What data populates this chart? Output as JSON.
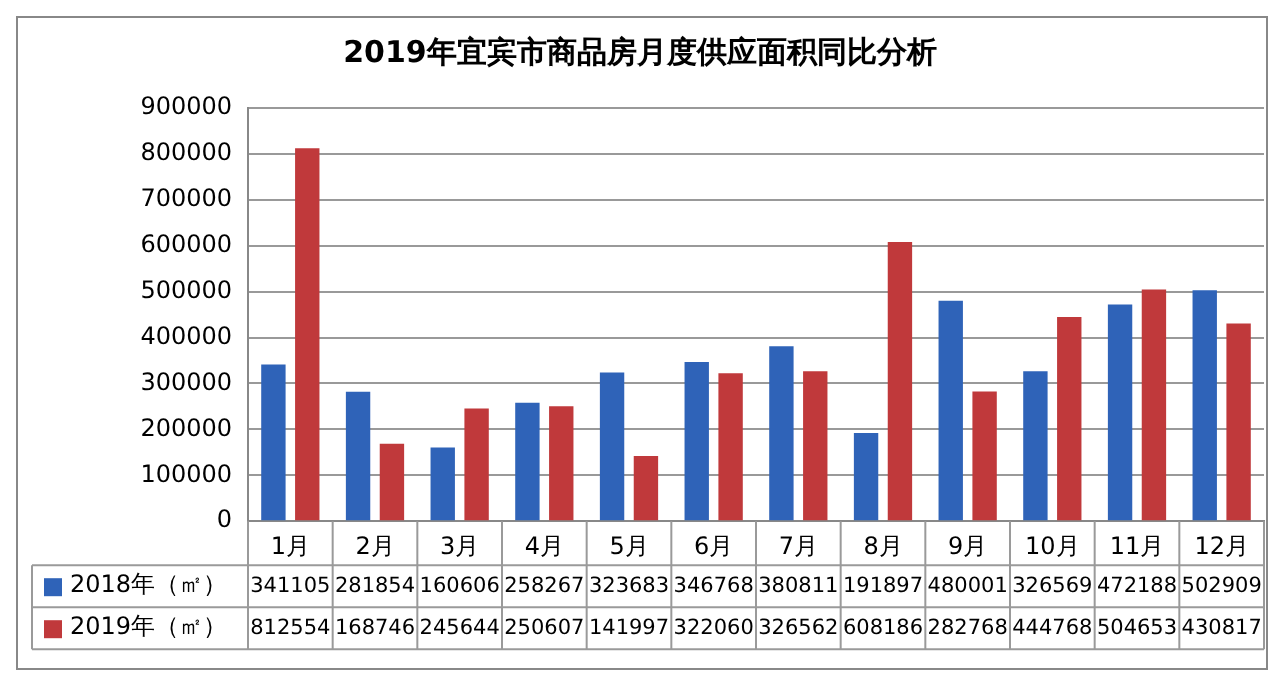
{
  "chart_data": {
    "type": "bar",
    "title": "2019年宜宾市商品房月度供应面积同比分析",
    "categories": [
      "1月",
      "2月",
      "3月",
      "4月",
      "5月",
      "6月",
      "7月",
      "8月",
      "9月",
      "10月",
      "11月",
      "12月"
    ],
    "series": [
      {
        "name": "2018年（㎡）",
        "color": "#2f63b8",
        "values": [
          341105,
          281854,
          160606,
          258267,
          323683,
          346768,
          380811,
          191897,
          480001,
          326569,
          472188,
          502909
        ]
      },
      {
        "name": "2019年（㎡）",
        "color": "#c0393b",
        "values": [
          812554,
          168746,
          245644,
          250607,
          141997,
          322060,
          326562,
          608186,
          282768,
          444768,
          504653,
          430817
        ]
      }
    ],
    "ylim": [
      0,
      900000
    ],
    "yticks": [
      0,
      100000,
      200000,
      300000,
      400000,
      500000,
      600000,
      700000,
      800000,
      900000
    ],
    "grid": "y",
    "legend": "bottom",
    "data_labels": true
  }
}
